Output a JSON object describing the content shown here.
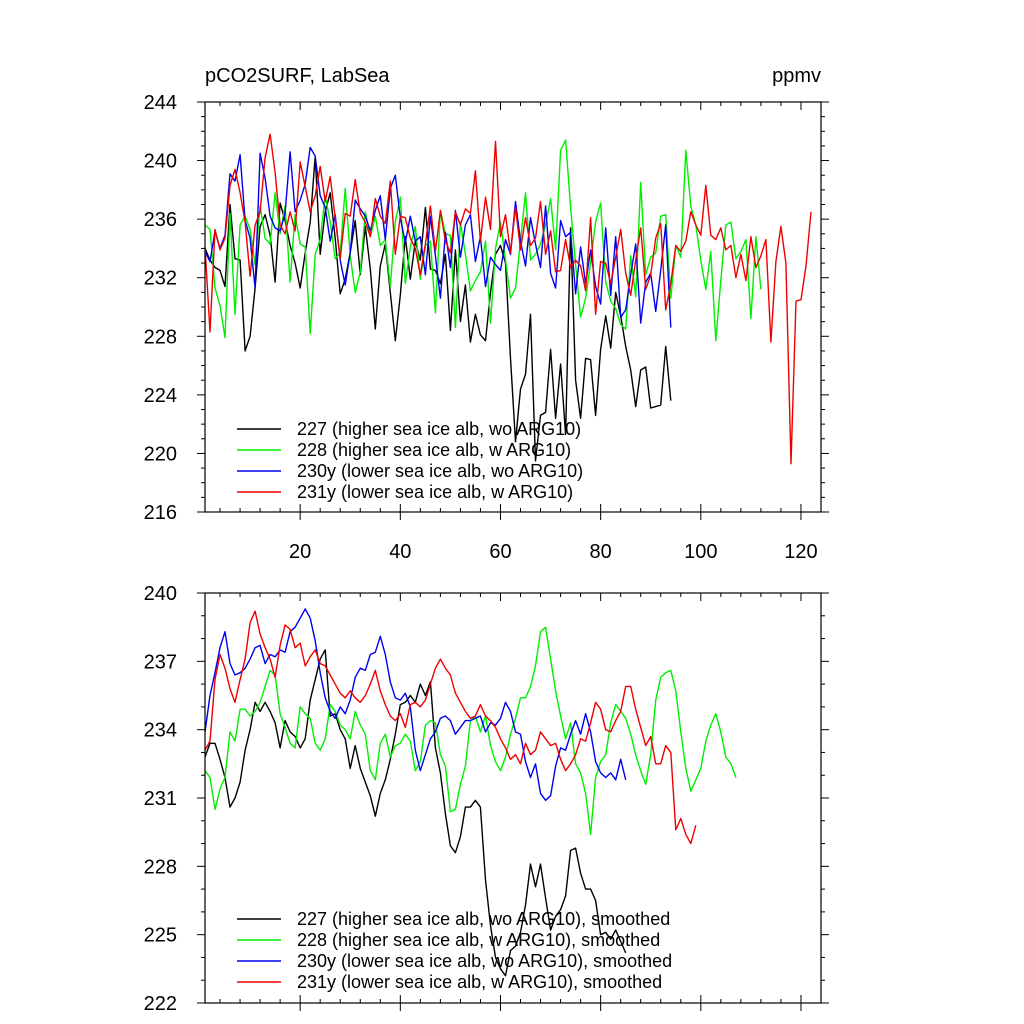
{
  "chart_data": [
    {
      "type": "line",
      "title": "pCO2SURF, LabSea",
      "units": "ppmv",
      "xlabel": "",
      "ylabel": "",
      "xlim": [
        1,
        124
      ],
      "ylim": [
        216,
        244
      ],
      "xticks": [
        20,
        40,
        60,
        80,
        100,
        120
      ],
      "yticks": [
        216,
        220,
        224,
        228,
        232,
        236,
        240,
        244
      ],
      "legend_position": "bottom-left",
      "series": [
        {
          "name": "227 (higher sea ice alb, wo ARG10)",
          "color": "#000000",
          "x_start": 1,
          "values": [
            234,
            233.2,
            232.7,
            232.5,
            231.4,
            237,
            233.3,
            233.2,
            227,
            228,
            231.3,
            235.5,
            236.3,
            234.9,
            231.7,
            237.1,
            235.9,
            234.2,
            233,
            231.3,
            233.7,
            235.8,
            240.3,
            233.6,
            236.5,
            237.8,
            234.7,
            230.9,
            231.9,
            233.7,
            235.9,
            232.2,
            235.5,
            232.6,
            228.5,
            232.8,
            234.3,
            231,
            227.7,
            230.8,
            234.8,
            231.9,
            234.5,
            233.2,
            236.8,
            232.6,
            232.5,
            231.6,
            233.6,
            228.4,
            233.9,
            229,
            231.5,
            227.6,
            229.5,
            228.1,
            227.7,
            231,
            233.6,
            234.2,
            233,
            226.5,
            220.8,
            224.4,
            225.4,
            229.5,
            219.5,
            222.6,
            222.8,
            227.1,
            222.4,
            226.1,
            221.3,
            235.4,
            225,
            222.4,
            226.5,
            226.4,
            222.6,
            227.1,
            229.4,
            227.2,
            231,
            229.4,
            227.3,
            225.7,
            223.2,
            225.7,
            225.9,
            223.1,
            223.2,
            223.3,
            227.3,
            223.6
          ]
        },
        {
          "name": "228 (higher sea ice alb, w ARG10)",
          "color": "#00ee00",
          "x_start": 1,
          "values": [
            235.6,
            235.3,
            231.3,
            230.1,
            227.9,
            236.4,
            229.5,
            235.6,
            236.2,
            235.3,
            232.9,
            236.9,
            234.7,
            234.3,
            237.8,
            235,
            236.9,
            231.7,
            236.3,
            234.3,
            234.1,
            228.2,
            233.6,
            234.6,
            237.6,
            235.8,
            233.3,
            233.7,
            238.1,
            233.5,
            231,
            232.4,
            236.5,
            234.8,
            236.2,
            234.2,
            234.6,
            231.4,
            235.8,
            237.5,
            231.6,
            234.1,
            235.5,
            231.9,
            234.2,
            234.5,
            229.6,
            236.6,
            235,
            234.9,
            228.6,
            235.8,
            233.6,
            231.1,
            231.8,
            232.4,
            234.5,
            228.9,
            234,
            235.8,
            233.2,
            230.6,
            231.3,
            234.5,
            237.8,
            233.2,
            233.6,
            234.3,
            235.6,
            237.4,
            233.9,
            240.7,
            241.4,
            236.8,
            232.9,
            229.3,
            230.6,
            233,
            235.8,
            237.1,
            231.7,
            230.4,
            229.9,
            228.8,
            228.5,
            233.5,
            230.7,
            238.5,
            232.2,
            233.4,
            233.7,
            236.2,
            236.3,
            230.6,
            234.2,
            233.4,
            240.7,
            236.9,
            235.6,
            233.2,
            231.2,
            233.8,
            227.7,
            231.8,
            235.6,
            235.8,
            233.3,
            233.8,
            234.6,
            229.2,
            234.8,
            231.2
          ]
        },
        {
          "name": "230y (lower sea ice alb, wo ARG10)",
          "color": "#0000ee",
          "x_start": 1,
          "values": [
            233.8,
            233.1,
            235.2,
            234,
            234.9,
            239.1,
            238.6,
            240.4,
            235.9,
            234.7,
            231.3,
            240.5,
            238.8,
            236.2,
            235.4,
            235.2,
            236.4,
            240.6,
            236.5,
            237.3,
            238.4,
            240.9,
            240.3,
            237.6,
            236.8,
            234.5,
            236.3,
            233.2,
            231.5,
            233.7,
            237.3,
            236.7,
            236.2,
            235.2,
            236.6,
            237.6,
            234.6,
            238.1,
            239,
            236.1,
            234.4,
            236.2,
            234.5,
            234.8,
            232.2,
            236.2,
            233.5,
            230.6,
            235.1,
            232.7,
            236.6,
            233.4,
            235.6,
            236.3,
            233.1,
            234.8,
            231.4,
            233.4,
            232.9,
            232.5,
            234.6,
            233.6,
            237.2,
            234.5,
            232.8,
            236.1,
            234.3,
            232.7,
            236.9,
            232.3,
            231.3,
            235.9,
            234.8,
            235.1,
            230.9,
            234.1,
            231.6,
            233.9,
            231.4,
            230.2,
            235.4,
            230.8,
            234.8,
            229.3,
            229.8,
            232.2,
            234.3,
            228.9,
            231.7,
            232.3,
            229.7,
            232.5,
            235.6,
            228.6
          ]
        },
        {
          "name": "231y (lower sea ice alb, w ARG10)",
          "color": "#ee0000",
          "x_start": 1,
          "values": [
            234.1,
            228.3,
            235.3,
            233.9,
            234.7,
            238.3,
            239.4,
            237.8,
            235.8,
            232.1,
            235.6,
            236.5,
            240.2,
            241.8,
            239.2,
            235.6,
            235,
            236.5,
            235.2,
            239.9,
            238.2,
            236.5,
            237.6,
            239.6,
            237.2,
            238.9,
            236.1,
            233.3,
            236.4,
            236.2,
            238.7,
            236.4,
            235.8,
            234.8,
            237.4,
            236.2,
            235.7,
            238.6,
            233.6,
            236.2,
            236.1,
            234.7,
            234,
            232.2,
            234.3,
            236.9,
            233.8,
            236.6,
            234.5,
            233.7,
            236.5,
            235.6,
            236.7,
            236.4,
            239.3,
            234.5,
            237.5,
            235.3,
            241.3,
            234.8,
            236.3,
            233.7,
            236.8,
            233.9,
            236.1,
            234.2,
            234.7,
            237.2,
            233.6,
            235.2,
            232.4,
            232.5,
            234.6,
            232.7,
            233.2,
            232.8,
            231.1,
            236.1,
            229.5,
            233.1,
            233,
            231.6,
            233.4,
            235.3,
            232.3,
            230.8,
            233.2,
            235.4,
            231.2,
            232.2,
            234.7,
            235.7,
            229.8,
            231.6,
            234.2,
            233.8,
            234.5,
            236.5,
            235.6,
            234.9,
            238.3,
            234.9,
            234.6,
            235.4,
            233.9,
            234.2,
            232,
            233.6,
            231.8,
            234.8,
            232.7,
            233.5,
            234.6,
            227.6,
            233.1,
            235.5,
            233,
            219.3,
            230.4,
            230.5,
            232.8,
            236.5
          ]
        }
      ]
    },
    {
      "type": "line",
      "title": "",
      "xlabel": "",
      "ylabel": "",
      "xlim": [
        1,
        124
      ],
      "ylim": [
        222,
        240
      ],
      "xticks": [
        20,
        40,
        60,
        80,
        100,
        120
      ],
      "yticks": [
        222,
        225,
        228,
        231,
        234,
        237,
        240
      ],
      "legend_position": "bottom-left",
      "series": [
        {
          "name": "227 (higher sea ice alb, wo ARG10), smoothed",
          "color": "#000000",
          "x_start": 1,
          "values": [
            232.8,
            233.4,
            233.4,
            232.7,
            231.9,
            230.6,
            231,
            231.7,
            233.1,
            234,
            235.2,
            234.8,
            235.2,
            234.8,
            234.3,
            233.2,
            234.4,
            233.9,
            233.7,
            233.2,
            233.6,
            235.3,
            236.2,
            237.1,
            237.5,
            234.6,
            234.7,
            234,
            233.6,
            232.3,
            233.3,
            232.3,
            231.7,
            231.1,
            230.2,
            231.2,
            231.8,
            232.7,
            233.8,
            235.1,
            235.2,
            235.5,
            235.2,
            236,
            235.5,
            236.1,
            233.2,
            232.1,
            230.3,
            228.9,
            228.6,
            229.3,
            230.6,
            230.6,
            230.9,
            230.6,
            227.4,
            225.4,
            224,
            223.5,
            223.2,
            224.3,
            224.5,
            225.1,
            226.3,
            228.1,
            227.1,
            228.1,
            226.6,
            225.2,
            225.8,
            226.1,
            226.7,
            228.7,
            228.8,
            227.7,
            227,
            227,
            226.5,
            225,
            225.1,
            224.8,
            225.2,
            224.7,
            224.2
          ]
        },
        {
          "name": "228 (higher sea ice alb, w ARG10), smoothed",
          "color": "#00ee00",
          "x_start": 1,
          "values": [
            232.2,
            231.9,
            230.5,
            231.4,
            231.9,
            233.9,
            233.5,
            234.9,
            234.9,
            234.6,
            234.8,
            235.2,
            235.9,
            236.6,
            236.4,
            234.7,
            234.1,
            233.4,
            233.2,
            235,
            234.7,
            234.5,
            233.4,
            233.1,
            233.6,
            235.1,
            234.8,
            234.2,
            234,
            233.6,
            234.8,
            234.2,
            233.8,
            232.2,
            231.8,
            233.4,
            233.8,
            232.8,
            233.3,
            233.4,
            233.8,
            233.5,
            232.2,
            232.6,
            234.2,
            234.4,
            234.3,
            232.9,
            232.4,
            230.4,
            230.5,
            231.6,
            232.4,
            234.4,
            234.6,
            233.9,
            234.6,
            233.3,
            232.6,
            232.2,
            232.8,
            233.8,
            234.5,
            235.4,
            235.4,
            235.9,
            236.8,
            238.3,
            238.5,
            237.1,
            235.7,
            234.6,
            233.6,
            234.3,
            232.5,
            232.1,
            231.2,
            229.4,
            231.9,
            232.6,
            232.9,
            234.3,
            235.1,
            234.8,
            234.5,
            233.8,
            232.9,
            232.2,
            231.6,
            232.9,
            235.3,
            236.3,
            236.5,
            236.6,
            235.7,
            233.9,
            232.3,
            231.3,
            231.8,
            232.3,
            233.5,
            234.2,
            234.7,
            233.9,
            232.8,
            232.5,
            231.9
          ]
        },
        {
          "name": "230y (lower sea ice alb, wo ARG10), smoothed",
          "color": "#0000ee",
          "x_start": 1,
          "values": [
            233.9,
            235.5,
            236.5,
            237.6,
            238.3,
            236.9,
            236.4,
            236.5,
            236.7,
            237.1,
            237.6,
            237.7,
            236.9,
            237.3,
            237.2,
            237.5,
            237.4,
            238.3,
            238.5,
            238.9,
            239.3,
            238.9,
            237.9,
            236.5,
            235.4,
            234.8,
            234.5,
            235,
            234.7,
            235.3,
            236.3,
            236.7,
            236.6,
            237.3,
            237.4,
            238.1,
            237.3,
            236.1,
            235.4,
            235.3,
            235.6,
            235,
            233.1,
            232.2,
            232.9,
            233.6,
            233.9,
            234.5,
            234.6,
            234.4,
            233.8,
            234.1,
            234.4,
            234.4,
            234.5,
            234.6,
            233.9,
            234.3,
            234.2,
            234.5,
            235.2,
            234.8,
            233.9,
            233.8,
            232.6,
            231.9,
            232.5,
            231.2,
            230.9,
            231.1,
            232.4,
            233.2,
            233.1,
            233.8,
            234.4,
            233.8,
            234.7,
            233.9,
            232.6,
            232.1,
            231.9,
            232.1,
            231.8,
            232.7,
            231.8
          ]
        },
        {
          "name": "231y (lower sea ice alb, w ARG10), smoothed",
          "color": "#ee0000",
          "x_start": 1,
          "values": [
            233.1,
            233.5,
            236.2,
            237.3,
            236.7,
            235.8,
            235.2,
            236.2,
            237.1,
            238.7,
            239.2,
            238.2,
            237.6,
            237.1,
            236.3,
            237.7,
            238.6,
            238.4,
            237.6,
            237.8,
            236.8,
            237.2,
            237.5,
            236.9,
            236.8,
            236.4,
            236,
            235.6,
            235.4,
            235.7,
            235.4,
            235.2,
            235.5,
            236,
            236.6,
            235.7,
            235.1,
            234.6,
            234.4,
            234.7,
            234.1,
            235.1,
            235.2,
            235,
            235.3,
            236,
            236.7,
            237.1,
            236.7,
            236.4,
            235.6,
            235.2,
            234.8,
            234.5,
            234.6,
            235.1,
            234.6,
            234.4,
            234.1,
            233.6,
            233.2,
            232.7,
            232.9,
            232.5,
            233.4,
            232.9,
            233.1,
            233.9,
            233.6,
            233.3,
            233.4,
            232.7,
            232.2,
            232.5,
            232.9,
            233.6,
            233.5,
            234.3,
            235.2,
            234.9,
            234,
            233.9,
            234.4,
            234.8,
            235.9,
            235.9,
            234.9,
            234.1,
            233.3,
            233.7,
            232.5,
            232.5,
            233.3,
            233,
            229.6,
            230.1,
            229.4,
            229,
            229.8
          ]
        }
      ]
    }
  ]
}
